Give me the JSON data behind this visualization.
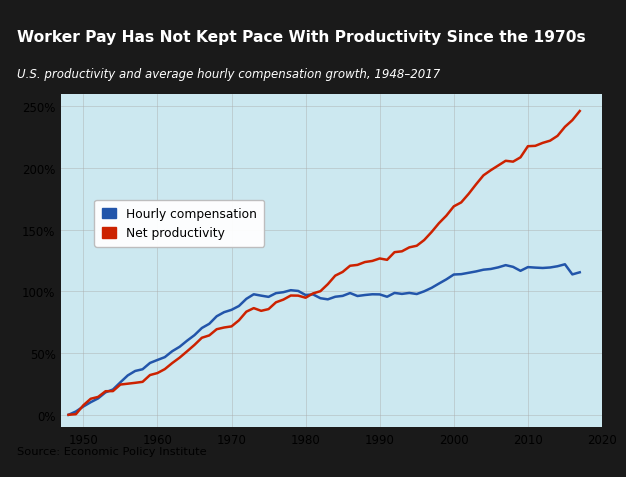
{
  "title": "Worker Pay Has Not Kept Pace With Productivity Since the 1970s",
  "subtitle": "U.S. productivity and average hourly compensation growth, 1948–2017",
  "source": "Source: Economic Policy Institute",
  "title_bg_color": "#1a1a1a",
  "title_color": "#ffffff",
  "subtitle_color": "#ffffff",
  "plot_bg_color": "#cce8f0",
  "source_bg_color": "#d8d8d8",
  "years": [
    1948,
    1949,
    1950,
    1951,
    1952,
    1953,
    1954,
    1955,
    1956,
    1957,
    1958,
    1959,
    1960,
    1961,
    1962,
    1963,
    1964,
    1965,
    1966,
    1967,
    1968,
    1969,
    1970,
    1971,
    1972,
    1973,
    1974,
    1975,
    1976,
    1977,
    1978,
    1979,
    1980,
    1981,
    1982,
    1983,
    1984,
    1985,
    1986,
    1987,
    1988,
    1989,
    1990,
    1991,
    1992,
    1993,
    1994,
    1995,
    1996,
    1997,
    1998,
    1999,
    2000,
    2001,
    2002,
    2003,
    2004,
    2005,
    2006,
    2007,
    2008,
    2009,
    2010,
    2011,
    2012,
    2013,
    2014,
    2015,
    2016,
    2017
  ],
  "productivity": [
    0.0,
    0.5,
    7.7,
    13.0,
    14.5,
    19.1,
    19.2,
    24.5,
    25.2,
    25.9,
    26.7,
    32.2,
    33.8,
    37.0,
    41.9,
    46.3,
    51.4,
    56.6,
    62.4,
    64.3,
    69.3,
    70.7,
    71.6,
    76.5,
    83.5,
    86.4,
    84.2,
    85.6,
    91.1,
    93.3,
    96.6,
    96.5,
    94.8,
    98.3,
    100.1,
    105.8,
    112.7,
    115.7,
    120.7,
    121.4,
    123.7,
    124.6,
    126.6,
    125.5,
    131.7,
    132.4,
    135.6,
    136.9,
    141.5,
    148.0,
    155.2,
    161.3,
    168.8,
    172.0,
    178.9,
    186.6,
    193.9,
    198.1,
    201.9,
    205.7,
    205.0,
    208.5,
    217.5,
    217.8,
    220.2,
    222.0,
    225.9,
    233.2,
    238.6,
    246.0
  ],
  "compensation": [
    0.0,
    2.7,
    6.7,
    10.2,
    13.3,
    18.2,
    20.5,
    26.3,
    31.9,
    35.5,
    36.9,
    42.0,
    44.4,
    46.7,
    51.5,
    55.1,
    60.0,
    64.5,
    70.3,
    73.7,
    79.8,
    83.1,
    85.0,
    88.1,
    93.9,
    97.6,
    96.5,
    95.5,
    98.5,
    99.3,
    100.9,
    100.3,
    97.0,
    97.5,
    94.4,
    93.5,
    95.6,
    96.3,
    98.6,
    96.2,
    97.0,
    97.6,
    97.5,
    95.6,
    98.7,
    97.9,
    98.7,
    97.8,
    100.0,
    102.8,
    106.3,
    109.7,
    113.6,
    113.9,
    115.0,
    116.1,
    117.5,
    118.1,
    119.4,
    121.2,
    119.8,
    116.6,
    119.6,
    119.2,
    118.9,
    119.3,
    120.3,
    121.9,
    113.7,
    115.4
  ],
  "productivity_color": "#cc2200",
  "compensation_color": "#2255aa",
  "legend_labels": [
    "Hourly compensation",
    "Net productivity"
  ],
  "ylim": [
    -10,
    260
  ],
  "yticks": [
    0,
    50,
    100,
    150,
    200,
    250
  ],
  "ytick_labels": [
    "0%",
    "50%",
    "100%",
    "150%",
    "200%",
    "250%"
  ],
  "xlim": [
    1947,
    2019
  ],
  "xticks": [
    1950,
    1960,
    1970,
    1980,
    1990,
    2000,
    2010,
    2020
  ],
  "grid_color": "#aaaaaa",
  "line_width": 1.8
}
